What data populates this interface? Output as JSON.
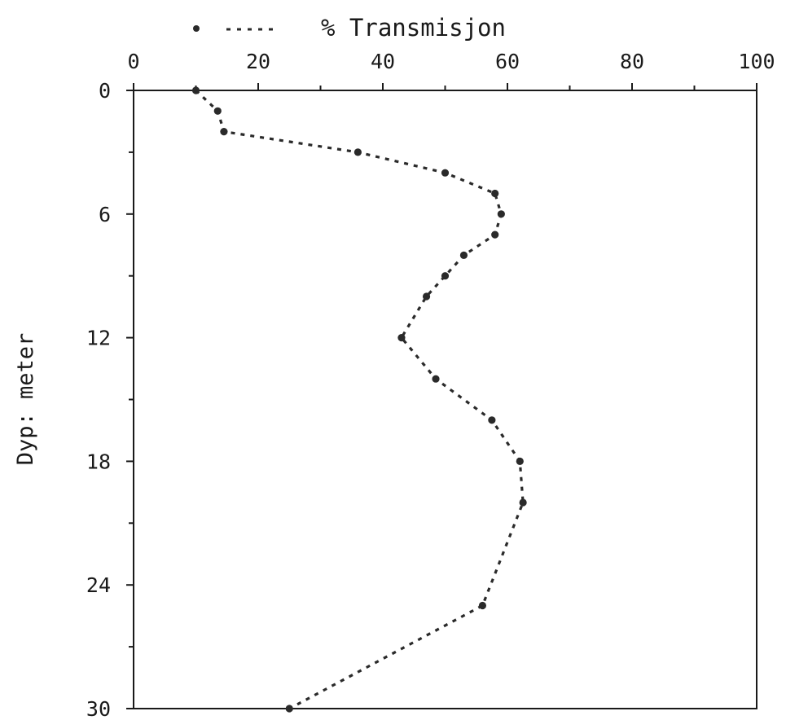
{
  "chart_data": {
    "type": "line",
    "legend": {
      "label": "% Transmisjon",
      "placement": "top",
      "marker": "dot",
      "line_style": "dotted"
    },
    "xlabel": "",
    "ylabel": "Dyp: meter",
    "x_axis_position": "top",
    "y_axis_inverted": true,
    "xlim": [
      0,
      100
    ],
    "ylim": [
      0,
      30
    ],
    "x_ticks": [
      0,
      20,
      40,
      60,
      80,
      100
    ],
    "y_ticks": [
      0,
      6,
      12,
      18,
      24,
      30
    ],
    "grid": false,
    "series": [
      {
        "color": "#2a2a2a",
        "points": [
          {
            "x": 10.0,
            "y": 0
          },
          {
            "x": 13.5,
            "y": 1
          },
          {
            "x": 14.5,
            "y": 2
          },
          {
            "x": 36.0,
            "y": 3
          },
          {
            "x": 50.0,
            "y": 4
          },
          {
            "x": 58.0,
            "y": 5
          },
          {
            "x": 59.0,
            "y": 6
          },
          {
            "x": 58.0,
            "y": 7
          },
          {
            "x": 53.0,
            "y": 8
          },
          {
            "x": 50.0,
            "y": 9
          },
          {
            "x": 47.0,
            "y": 10
          },
          {
            "x": 43.0,
            "y": 12
          },
          {
            "x": 48.5,
            "y": 14
          },
          {
            "x": 57.5,
            "y": 16
          },
          {
            "x": 62.0,
            "y": 18
          },
          {
            "x": 62.5,
            "y": 20
          },
          {
            "x": 56.0,
            "y": 25
          },
          {
            "x": 25.0,
            "y": 30
          }
        ]
      }
    ]
  }
}
